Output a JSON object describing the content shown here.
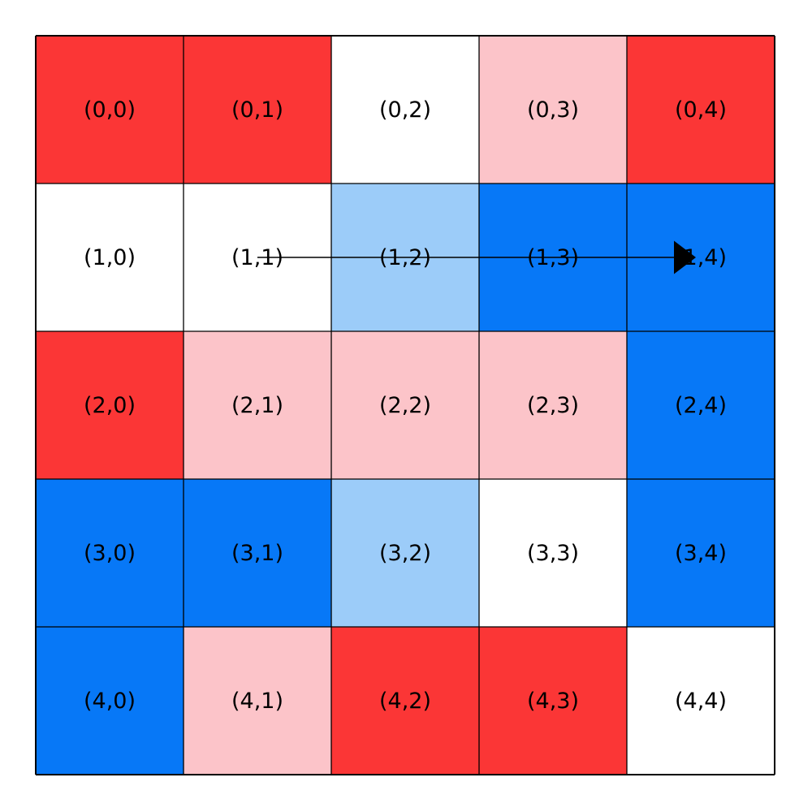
{
  "figure": {
    "background": "#ffffff",
    "description": "5x5 gridworld heatmap with coordinate labels and an annotation arrow"
  },
  "chart_data": {
    "type": "heatmap",
    "rows": 5,
    "cols": 5,
    "cell_labels": [
      [
        "(0,0)",
        "(0,1)",
        "(0,2)",
        "(0,3)",
        "(0,4)"
      ],
      [
        "(1,0)",
        "(1,1)",
        "(1,2)",
        "(1,3)",
        "(1,4)"
      ],
      [
        "(2,0)",
        "(2,1)",
        "(2,2)",
        "(2,3)",
        "(2,4)"
      ],
      [
        "(3,0)",
        "(3,1)",
        "(3,2)",
        "(3,3)",
        "(3,4)"
      ],
      [
        "(4,0)",
        "(4,1)",
        "(4,2)",
        "(4,3)",
        "(4,4)"
      ]
    ],
    "cell_colors": [
      [
        "red",
        "red",
        "white",
        "pink",
        "red"
      ],
      [
        "white",
        "white",
        "lightblue",
        "blue",
        "blue"
      ],
      [
        "red",
        "pink",
        "pink",
        "pink",
        "blue"
      ],
      [
        "blue",
        "blue",
        "lightblue",
        "white",
        "blue"
      ],
      [
        "blue",
        "pink",
        "red",
        "red",
        "white"
      ]
    ],
    "palette": {
      "red": "#fb3636",
      "pink": "#fcc4c9",
      "white": "#ffffff",
      "lightblue": "#9cccf9",
      "blue": "#0778f7"
    },
    "grid_line_color": "#000000",
    "label_color": "#000000",
    "annotation_arrow": {
      "from_cell": [
        1,
        1
      ],
      "to_cell": [
        1,
        4
      ],
      "color": "#000000"
    },
    "title": "",
    "xlabel": "",
    "ylabel": ""
  }
}
